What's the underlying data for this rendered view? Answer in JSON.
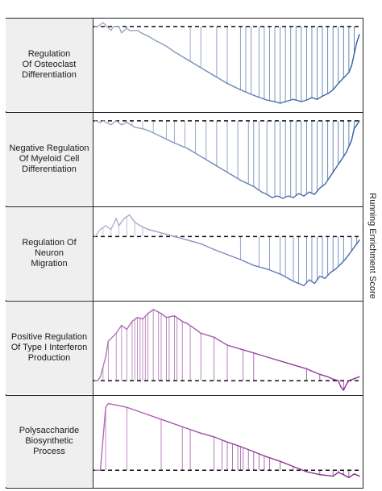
{
  "chart_data": {
    "type": "line",
    "ylabel": "Running Enrichment Score",
    "grid": false,
    "legend": "none",
    "x_domain": [
      0,
      100
    ],
    "panels": [
      {
        "label": "Regulation\nOf Osteoclast\nDifferentiation",
        "y_domain": [
          -1,
          0.05
        ],
        "curve_x": [
          0,
          1,
          3,
          6,
          7,
          9,
          10,
          12,
          13,
          16,
          18,
          20,
          23,
          27,
          30,
          35,
          40,
          45,
          50,
          55,
          60,
          65,
          68,
          70,
          72,
          75,
          78,
          80,
          82,
          84,
          86,
          88,
          90,
          92,
          94,
          96,
          97,
          98,
          99,
          100
        ],
        "curve_y": [
          0,
          0,
          0.05,
          -0.05,
          0,
          0,
          -0.08,
          -0.02,
          -0.05,
          -0.05,
          -0.09,
          -0.12,
          -0.18,
          -0.25,
          -0.32,
          -0.42,
          -0.52,
          -0.62,
          -0.72,
          -0.8,
          -0.87,
          -0.93,
          -0.95,
          -0.97,
          -0.95,
          -0.92,
          -0.95,
          -0.93,
          -0.9,
          -0.92,
          -0.88,
          -0.85,
          -0.8,
          -0.72,
          -0.65,
          -0.58,
          -0.5,
          -0.35,
          -0.2,
          -0.1
        ],
        "hits": [
          4,
          12,
          36,
          40,
          46,
          50,
          55,
          57,
          59,
          62,
          64,
          66,
          68,
          70,
          72,
          74,
          76,
          78,
          80,
          82,
          84,
          86,
          88,
          90,
          92,
          94,
          96,
          98
        ],
        "color_start": "#a7b0c2",
        "color_end": "#2f5ea0"
      },
      {
        "label": "Negative Regulation\nOf Myeloid Cell\nDifferentiation",
        "y_domain": [
          -1,
          0.05
        ],
        "curve_x": [
          0,
          2,
          3,
          6,
          8,
          10,
          12,
          15,
          18,
          20,
          25,
          30,
          35,
          40,
          45,
          50,
          55,
          60,
          63,
          65,
          67,
          69,
          71,
          73,
          75,
          77,
          79,
          81,
          83,
          85,
          87,
          89,
          91,
          93,
          95,
          97,
          98,
          100
        ],
        "curve_y": [
          0,
          -0.02,
          0,
          -0.05,
          0,
          -0.05,
          -0.02,
          -0.08,
          -0.1,
          -0.12,
          -0.2,
          -0.28,
          -0.35,
          -0.45,
          -0.55,
          -0.65,
          -0.75,
          -0.83,
          -0.9,
          -0.93,
          -0.97,
          -0.95,
          -0.98,
          -0.95,
          -0.97,
          -0.92,
          -0.95,
          -0.9,
          -0.93,
          -0.85,
          -0.8,
          -0.7,
          -0.6,
          -0.5,
          -0.4,
          -0.25,
          -0.1,
          0
        ],
        "hits": [
          2,
          5,
          8,
          12,
          14,
          18,
          22,
          27,
          30,
          34,
          38,
          42,
          46,
          50,
          54,
          58,
          60,
          62,
          65,
          68,
          70,
          72,
          74,
          76,
          78,
          80,
          82,
          84,
          86,
          88,
          90,
          92,
          94,
          96,
          98
        ],
        "color_start": "#a7b0c2",
        "color_end": "#2f5ea0"
      },
      {
        "label": "Regulation Of Neuron\nMigration",
        "y_domain": [
          -0.8,
          0.35
        ],
        "curve_x": [
          0,
          2,
          4,
          6,
          8,
          9,
          11,
          13,
          15,
          17,
          20,
          25,
          30,
          35,
          40,
          45,
          50,
          55,
          60,
          65,
          70,
          73,
          75,
          77,
          79,
          81,
          83,
          85,
          87,
          89,
          91,
          93,
          95,
          97,
          99,
          100
        ],
        "curve_y": [
          0,
          0.1,
          0.15,
          0.1,
          0.25,
          0.15,
          0.25,
          0.3,
          0.2,
          0.15,
          0.1,
          0.05,
          0,
          -0.05,
          -0.1,
          -0.18,
          -0.25,
          -0.32,
          -0.4,
          -0.45,
          -0.52,
          -0.58,
          -0.62,
          -0.65,
          -0.68,
          -0.6,
          -0.65,
          -0.55,
          -0.58,
          -0.5,
          -0.45,
          -0.38,
          -0.3,
          -0.2,
          -0.1,
          -0.05
        ],
        "hits": [
          3,
          6,
          9,
          12,
          15,
          18,
          25,
          30,
          55,
          62,
          66,
          70,
          72,
          75,
          77,
          80,
          82,
          84,
          86,
          88,
          90,
          92,
          94,
          97,
          99
        ],
        "color_start": "#c0b3d0",
        "color_end": "#3c67a8"
      },
      {
        "label": "Positive Regulation\nOf Type I Interferon\nProduction",
        "y_domain": [
          -0.1,
          0.95
        ],
        "curve_x": [
          0,
          1,
          2,
          4,
          5,
          8,
          10,
          12,
          14,
          16,
          18,
          20,
          22,
          25,
          27,
          30,
          33,
          35,
          38,
          40,
          45,
          50,
          55,
          60,
          65,
          70,
          75,
          80,
          85,
          88,
          90,
          92,
          93,
          94,
          95,
          96,
          100
        ],
        "curve_y": [
          0,
          0,
          0.05,
          0.3,
          0.5,
          0.6,
          0.7,
          0.65,
          0.75,
          0.8,
          0.78,
          0.85,
          0.9,
          0.85,
          0.8,
          0.82,
          0.75,
          0.72,
          0.65,
          0.6,
          0.55,
          0.45,
          0.4,
          0.35,
          0.3,
          0.25,
          0.2,
          0.15,
          0.08,
          0.05,
          0.02,
          0,
          -0.08,
          -0.12,
          -0.05,
          0,
          0.05
        ],
        "hits": [
          3,
          5,
          8,
          10,
          12,
          14,
          15,
          16,
          17,
          18,
          19,
          20,
          22,
          24,
          25,
          27,
          28,
          30,
          31,
          33,
          36,
          40,
          45,
          50,
          56,
          60,
          80,
          85,
          90,
          94,
          97
        ],
        "color_start": "#b27ab8",
        "color_end": "#8c2e96"
      },
      {
        "label": "Polysaccharide\nBiosynthetic Process",
        "y_domain": [
          -0.15,
          0.95
        ],
        "curve_x": [
          0,
          2,
          4,
          5,
          8,
          12,
          16,
          20,
          24,
          28,
          32,
          36,
          40,
          45,
          50,
          55,
          60,
          65,
          70,
          75,
          80,
          85,
          90,
          92,
          94,
          96,
          98,
          100
        ],
        "curve_y": [
          0,
          0,
          0.85,
          0.9,
          0.88,
          0.85,
          0.8,
          0.75,
          0.7,
          0.65,
          0.6,
          0.55,
          0.5,
          0.45,
          0.38,
          0.32,
          0.25,
          0.18,
          0.12,
          0.05,
          -0.02,
          -0.06,
          -0.08,
          -0.03,
          -0.06,
          -0.1,
          -0.05,
          -0.08
        ],
        "hits": [
          2,
          4,
          12,
          25,
          33,
          36,
          45,
          48,
          50,
          52,
          54,
          55,
          56,
          58,
          60,
          62,
          64,
          66,
          70,
          75,
          80,
          85,
          90,
          92,
          94,
          96
        ],
        "color_start": "#b56db8",
        "color_end": "#7d2a88"
      }
    ]
  }
}
